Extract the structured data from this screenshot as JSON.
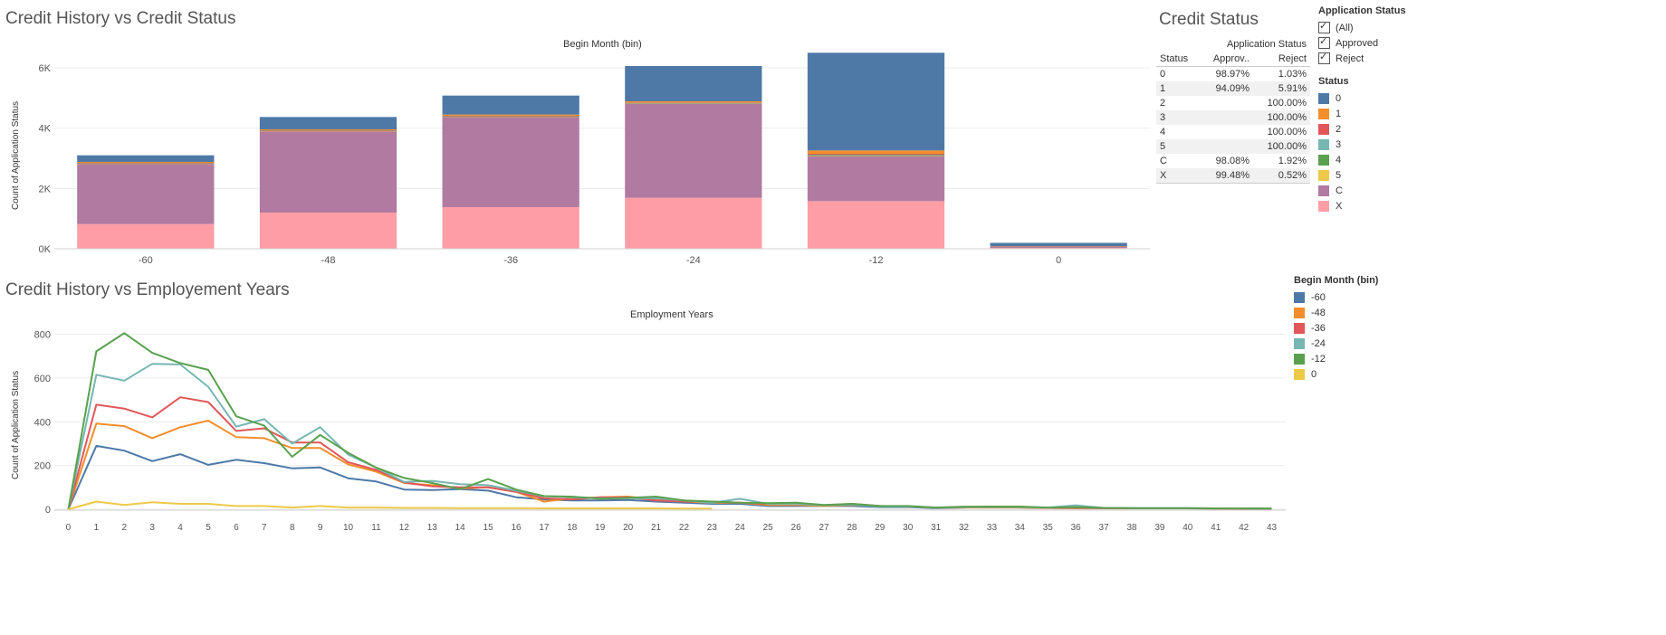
{
  "titles": {
    "top": "Credit History vs Credit Status",
    "bottom": "Credit History vs Employement Years",
    "status_panel": "Credit Status"
  },
  "top_chart": {
    "header": "Begin Month (bin)",
    "y_axis_label": "Count of Application Status",
    "y_ticks": [
      "0K",
      "2K",
      "4K",
      "6K"
    ],
    "status_colors": {
      "0": "#4e79a7",
      "1": "#f28e2b",
      "2": "#e15759",
      "3": "#76b7b2",
      "4": "#59a14f",
      "5": "#edc948",
      "C": "#b07aa1",
      "X": "#ff9da7"
    }
  },
  "bottom_chart": {
    "header": "Employment Years",
    "y_axis_label": "Count of Application Status",
    "y_ticks": [
      "0",
      "200",
      "400",
      "600",
      "800"
    ]
  },
  "status_table": {
    "group_header": "Application Status",
    "columns": [
      "Status",
      "Approv..",
      "Reject"
    ],
    "rows": [
      {
        "status": "0",
        "approved": "98.97%",
        "reject": "1.03%"
      },
      {
        "status": "1",
        "approved": "94.09%",
        "reject": "5.91%"
      },
      {
        "status": "2",
        "approved": "",
        "reject": "100.00%"
      },
      {
        "status": "3",
        "approved": "",
        "reject": "100.00%"
      },
      {
        "status": "4",
        "approved": "",
        "reject": "100.00%"
      },
      {
        "status": "5",
        "approved": "",
        "reject": "100.00%"
      },
      {
        "status": "C",
        "approved": "98.08%",
        "reject": "1.92%"
      },
      {
        "status": "X",
        "approved": "99.48%",
        "reject": "0.52%"
      }
    ]
  },
  "filter": {
    "title": "Application Status",
    "options": [
      {
        "label": "(All)",
        "checked": true
      },
      {
        "label": "Approved",
        "checked": true
      },
      {
        "label": "Reject",
        "checked": true
      }
    ]
  },
  "status_legend": {
    "title": "Status",
    "items": [
      {
        "label": "0",
        "color": "#4e79a7"
      },
      {
        "label": "1",
        "color": "#f28e2b"
      },
      {
        "label": "2",
        "color": "#e15759"
      },
      {
        "label": "3",
        "color": "#76b7b2"
      },
      {
        "label": "4",
        "color": "#59a14f"
      },
      {
        "label": "5",
        "color": "#edc948"
      },
      {
        "label": "C",
        "color": "#b07aa1"
      },
      {
        "label": "X",
        "color": "#ff9da7"
      }
    ]
  },
  "month_legend": {
    "title": "Begin Month (bin)",
    "items": [
      {
        "label": "-60",
        "color": "#4e79a7"
      },
      {
        "label": "-48",
        "color": "#f28e2b"
      },
      {
        "label": "-36",
        "color": "#e15759"
      },
      {
        "label": "-24",
        "color": "#76b7b2"
      },
      {
        "label": "-12",
        "color": "#59a14f"
      },
      {
        "label": "0",
        "color": "#edc948"
      }
    ]
  },
  "chart_data": [
    {
      "type": "bar",
      "stacked": true,
      "title": "Credit History vs Credit Status",
      "xlabel": "Begin Month (bin)",
      "ylabel": "Count of Application Status",
      "ylim": [
        0,
        6600
      ],
      "categories": [
        "-60",
        "-48",
        "-36",
        "-24",
        "-12",
        "0"
      ],
      "series": [
        {
          "name": "X",
          "values": [
            820,
            1200,
            1380,
            1690,
            1580,
            30
          ]
        },
        {
          "name": "C",
          "values": [
            2000,
            2700,
            3000,
            3130,
            1500,
            50
          ]
        },
        {
          "name": "5",
          "values": [
            5,
            5,
            5,
            5,
            10,
            0
          ]
        },
        {
          "name": "4",
          "values": [
            10,
            10,
            10,
            10,
            20,
            0
          ]
        },
        {
          "name": "3",
          "values": [
            5,
            5,
            5,
            5,
            10,
            0
          ]
        },
        {
          "name": "2",
          "values": [
            10,
            10,
            10,
            10,
            30,
            0
          ]
        },
        {
          "name": "1",
          "values": [
            30,
            30,
            40,
            40,
            110,
            5
          ]
        },
        {
          "name": "0",
          "values": [
            220,
            410,
            630,
            1170,
            3240,
            110
          ]
        }
      ],
      "grid": true,
      "legend": "right"
    },
    {
      "type": "line",
      "title": "Credit History vs Employement Years",
      "xlabel": "Employment Years",
      "ylabel": "Count of Application Status",
      "ylim": [
        0,
        860
      ],
      "x": [
        0,
        1,
        2,
        3,
        4,
        5,
        6,
        7,
        8,
        9,
        10,
        11,
        12,
        13,
        14,
        15,
        16,
        17,
        18,
        19,
        20,
        21,
        22,
        23,
        24,
        25,
        26,
        27,
        28,
        29,
        30,
        31,
        32,
        33,
        34,
        35,
        36,
        37,
        38,
        39,
        40,
        41,
        42,
        43
      ],
      "series": [
        {
          "name": "-60",
          "values": [
            0,
            290,
            268,
            220,
            252,
            203,
            226,
            211,
            187,
            191,
            142,
            127,
            90,
            88,
            92,
            85,
            55,
            45,
            40,
            40,
            42,
            35,
            30,
            25,
            25,
            15,
            15,
            15,
            15,
            10,
            10,
            5,
            8,
            12,
            8,
            6,
            5,
            5,
            4,
            4,
            4,
            3,
            3,
            3
          ]
        },
        {
          "name": "-48",
          "values": [
            0,
            392,
            380,
            325,
            375,
            405,
            330,
            325,
            280,
            280,
            205,
            172,
            120,
            110,
            95,
            100,
            80,
            35,
            50,
            55,
            58,
            45,
            35,
            30,
            30,
            20,
            20,
            15,
            20,
            15,
            12,
            8,
            8,
            8,
            8,
            6,
            5,
            5,
            4,
            4,
            4,
            3,
            3,
            3
          ]
        },
        {
          "name": "-36",
          "values": [
            0,
            478,
            460,
            420,
            512,
            490,
            358,
            370,
            305,
            305,
            215,
            180,
            122,
            105,
            100,
            100,
            80,
            50,
            45,
            55,
            55,
            40,
            35,
            35,
            30,
            25,
            25,
            18,
            25,
            15,
            12,
            8,
            10,
            12,
            12,
            6,
            8,
            5,
            4,
            4,
            4,
            4,
            3,
            3
          ]
        },
        {
          "name": "-24",
          "values": [
            0,
            615,
            588,
            665,
            662,
            560,
            378,
            412,
            300,
            375,
            250,
            190,
            125,
            130,
            115,
            110,
            85,
            60,
            55,
            50,
            50,
            50,
            40,
            30,
            48,
            25,
            25,
            18,
            22,
            12,
            12,
            8,
            10,
            10,
            10,
            8,
            18,
            6,
            5,
            5,
            5,
            4,
            4,
            3
          ]
        },
        {
          "name": "-12",
          "values": [
            0,
            722,
            805,
            715,
            668,
            637,
            425,
            382,
            240,
            340,
            258,
            190,
            143,
            120,
            92,
            138,
            90,
            60,
            58,
            48,
            52,
            58,
            40,
            35,
            30,
            28,
            30,
            20,
            25,
            15,
            15,
            8,
            12,
            12,
            12,
            8,
            10,
            6,
            5,
            5,
            5,
            4,
            4,
            3
          ]
        },
        {
          "name": "0",
          "values": [
            0,
            35,
            20,
            32,
            25,
            25,
            15,
            15,
            8,
            15,
            8,
            8,
            6,
            6,
            5,
            5,
            5,
            4,
            4,
            4,
            4,
            4,
            3,
            3,
            null,
            null,
            2,
            null,
            null,
            null,
            null,
            null,
            null,
            null,
            3,
            null,
            null,
            null,
            null,
            null,
            null,
            null,
            null,
            null
          ]
        }
      ],
      "grid": true,
      "legend": "right"
    }
  ]
}
